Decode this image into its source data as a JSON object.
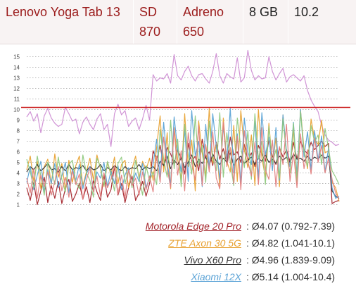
{
  "spec_row": [
    "Lenovo Yoga Tab 13",
    "SD 870",
    "Adreno 650",
    "8 GB",
    "10.2"
  ],
  "chart_data": {
    "type": "line",
    "title": "",
    "xlabel": "",
    "ylabel": "",
    "ylim": [
      0.5,
      15.7
    ],
    "yticks": [
      1,
      2,
      3,
      4,
      5,
      6,
      7,
      8,
      9,
      10,
      11,
      12,
      13,
      14,
      15
    ],
    "grid": "dotted-horizontal",
    "reference_line": {
      "y": 10.2,
      "color": "#cc2222"
    },
    "series": [
      {
        "name": "Lenovo Yoga Tab 13",
        "color": "#cf8fd4",
        "values": [
          9.3,
          9.8,
          8.9,
          9.6,
          7.8,
          9.4,
          10.1,
          9.2,
          8.7,
          8.4,
          8.6,
          10.2,
          9.6,
          8.9,
          9.1,
          7.7,
          8.8,
          9.3,
          8.6,
          8.1,
          9.1,
          9.6,
          8.1,
          8.6,
          6.5,
          9.6,
          10.5,
          9.5,
          9.9,
          8.4,
          8.9,
          9.2,
          8.1,
          9.1,
          10.4,
          9.0,
          13.3,
          12.7,
          13.0,
          12.9,
          13.4,
          12.5,
          15.2,
          13.2,
          12.8,
          13.6,
          14.1,
          13.2,
          12.7,
          13.3,
          13.4,
          12.9,
          12.5,
          13.6,
          15.3,
          13.2,
          12.5,
          13.4,
          13.1,
          12.9,
          14.9,
          12.6,
          13.0,
          15.6,
          13.7,
          12.8,
          13.2,
          12.9,
          13.0,
          15.0,
          13.6,
          12.8,
          13.4,
          13.9,
          12.6,
          13.1,
          13.3,
          13.0,
          12.7,
          13.2,
          11.8,
          10.9,
          10.3,
          9.8,
          8.5,
          7.6,
          7.1,
          6.9,
          6.6,
          6.7
        ]
      },
      {
        "name": "Motorola Edge 20 Pro",
        "color": "#a3232a",
        "values": [
          2.6,
          1.4,
          3.1,
          1.0,
          2.3,
          3.6,
          1.2,
          2.8,
          1.6,
          3.2,
          1.1,
          2.5,
          3.4,
          1.3,
          2.0,
          3.0,
          1.5,
          2.7,
          1.2,
          3.3,
          2.2,
          1.4,
          3.8,
          1.7,
          2.4,
          4.6,
          1.9,
          3.0,
          1.2,
          2.6,
          3.7,
          1.4,
          2.1,
          3.2,
          1.8,
          3.0,
          6.1,
          5.2,
          6.6,
          4.6,
          6.4,
          5.8,
          4.9,
          6.2,
          5.4,
          3.9,
          6.8,
          5.1,
          5.6,
          4.2,
          7.2,
          5.5,
          6.0,
          4.7,
          6.9,
          5.3,
          6.3,
          4.9,
          7.4,
          5.7,
          6.0,
          5.0,
          6.7,
          5.2,
          5.9,
          4.6,
          6.6,
          5.8,
          5.1,
          7.1,
          5.6,
          4.8,
          6.4,
          5.5,
          6.2,
          5.1,
          6.9,
          5.3,
          7.0,
          6.2,
          5.8,
          6.9,
          6.2,
          6.6,
          7.0,
          6.5,
          6.8,
          1.1,
          1.3,
          1.4
        ]
      },
      {
        "name": "ZTE Axon 30 5G",
        "color": "#e8a233",
        "values": [
          4.3,
          5.6,
          3.2,
          5.1,
          2.5,
          4.6,
          5.3,
          2.9,
          5.8,
          3.6,
          4.9,
          2.4,
          5.2,
          3.1,
          4.7,
          5.6,
          2.8,
          4.1,
          5.4,
          3.3,
          5.7,
          4.4,
          2.7,
          5.0,
          3.8,
          5.5,
          3.0,
          4.8,
          5.2,
          2.6,
          4.4,
          5.6,
          3.5,
          5.1,
          4.3,
          5.4,
          3.3,
          6.4,
          9.4,
          4.1,
          7.8,
          2.5,
          8.3,
          5.3,
          3.4,
          9.6,
          4.6,
          7.1,
          2.3,
          8.9,
          5.9,
          3.7,
          10.1,
          4.9,
          6.8,
          2.6,
          9.2,
          5.1,
          4.1,
          8.5,
          3.2,
          9.9,
          6.2,
          4.5,
          7.6,
          2.8,
          10.0,
          5.4,
          3.6,
          8.7,
          4.8,
          7.3,
          2.7,
          9.5,
          5.6,
          4.0,
          8.2,
          3.0,
          10.0,
          6.3,
          4.4,
          9.1,
          7.2,
          6.7,
          9.0,
          5.9,
          6.1,
          3.1,
          2.6,
          1.3
        ]
      },
      {
        "name": "Vivo X60 Pro",
        "color": "#333333",
        "values": [
          4.1,
          4.6,
          4.3,
          4.8,
          4.2,
          4.5,
          4.9,
          4.3,
          4.4,
          4.1,
          4.6,
          4.2,
          4.8,
          4.3,
          4.5,
          4.4,
          4.7,
          4.2,
          4.6,
          4.3,
          4.4,
          4.8,
          4.2,
          4.5,
          4.3,
          4.7,
          4.4,
          4.2,
          4.6,
          4.3,
          4.5,
          4.4,
          4.8,
          4.3,
          4.6,
          4.4,
          4.6,
          4.2,
          5.1,
          4.7,
          5.6,
          4.4,
          5.2,
          4.8,
          5.4,
          4.5,
          5.0,
          5.7,
          4.6,
          5.3,
          4.9,
          5.5,
          4.7,
          5.8,
          5.1,
          4.8,
          5.4,
          5.0,
          5.9,
          4.7,
          5.3,
          5.6,
          4.9,
          5.2,
          5.5,
          4.8,
          5.4,
          5.1,
          5.7,
          5.0,
          5.3,
          4.9,
          5.6,
          5.2,
          5.5,
          5.0,
          5.8,
          5.3,
          5.4,
          5.1,
          5.6,
          5.2,
          5.5,
          5.3,
          5.7,
          5.4,
          5.6,
          2.3,
          1.8,
          1.6
        ]
      },
      {
        "name": "Xiaomi 12X",
        "color": "#5ba3d6",
        "values": [
          3.1,
          4.6,
          2.4,
          3.8,
          5.1,
          2.2,
          4.3,
          3.0,
          4.9,
          2.6,
          3.7,
          5.0,
          2.1,
          4.4,
          3.3,
          4.8,
          2.5,
          3.9,
          4.6,
          2.3,
          4.1,
          3.5,
          5.0,
          2.7,
          4.2,
          3.0,
          4.7,
          2.4,
          3.8,
          4.5,
          2.8,
          4.0,
          3.2,
          4.9,
          2.6,
          3.6,
          4.8,
          7.2,
          3.6,
          8.8,
          5.0,
          2.9,
          9.3,
          6.2,
          4.1,
          8.1,
          3.2,
          9.9,
          5.6,
          7.0,
          2.7,
          8.6,
          4.4,
          9.6,
          6.5,
          3.4,
          8.4,
          5.2,
          10.1,
          4.0,
          7.7,
          3.0,
          9.2,
          6.0,
          4.8,
          8.9,
          3.5,
          9.7,
          5.7,
          7.4,
          4.2,
          8.3,
          3.3,
          9.5,
          6.1,
          4.6,
          8.8,
          3.8,
          10.0,
          5.5,
          7.9,
          4.3,
          8.0,
          5.2,
          7.5,
          4.1,
          6.4,
          2.6,
          1.6,
          1.8
        ]
      },
      {
        "name": "",
        "color": "#8fc97e",
        "values": [
          5.3,
          4.1,
          2.6,
          5.6,
          3.7,
          1.9,
          5.0,
          4.4,
          2.9,
          5.5,
          3.4,
          2.2,
          4.8,
          5.2,
          3.1,
          2.5,
          5.7,
          4.0,
          3.3,
          1.7,
          5.4,
          4.6,
          2.8,
          5.1,
          3.9,
          2.3,
          4.9,
          5.5,
          3.0,
          4.3,
          2.6,
          5.2,
          3.6,
          1.9,
          4.7,
          3.2,
          4.1,
          2.9,
          8.1,
          5.3,
          3.6,
          9.0,
          4.4,
          7.2,
          2.7,
          8.6,
          5.8,
          3.9,
          9.4,
          4.7,
          6.6,
          3.1,
          8.9,
          5.5,
          4.2,
          9.7,
          3.6,
          7.8,
          5.0,
          2.8,
          9.2,
          6.4,
          4.5,
          8.0,
          3.4,
          9.6,
          5.3,
          7.0,
          2.9,
          8.4,
          4.9,
          6.2,
          3.5,
          9.1,
          5.7,
          4.0,
          8.7,
          3.2,
          9.8,
          6.0,
          4.6,
          8.5,
          6.9,
          7.6,
          4.8,
          8.2,
          6.3,
          4.2,
          3.6,
          2.9
        ]
      },
      {
        "name": "",
        "color": "#e2807f",
        "values": [
          3.5,
          2.1,
          4.4,
          1.6,
          3.8,
          2.7,
          4.1,
          1.9,
          3.2,
          4.6,
          2.3,
          3.6,
          1.7,
          4.2,
          2.9,
          3.9,
          1.5,
          3.3,
          4.5,
          2.2,
          3.7,
          1.8,
          4.0,
          2.6,
          3.4,
          4.7,
          2.0,
          3.8,
          1.6,
          4.3,
          2.8,
          3.5,
          1.9,
          4.1,
          2.4,
          3.7,
          2.2,
          5.6,
          3.1,
          7.4,
          4.5,
          2.6,
          8.2,
          3.8,
          6.1,
          2.3,
          7.8,
          4.9,
          3.3,
          8.5,
          2.8,
          6.7,
          4.1,
          7.9,
          3.5,
          2.5,
          8.8,
          4.6,
          6.4,
          3.0,
          7.5,
          2.4,
          8.0,
          5.1,
          3.7,
          6.9,
          2.9,
          8.3,
          4.3,
          3.4,
          7.1,
          2.7,
          6.5,
          4.8,
          8.6,
          3.2,
          5.9,
          2.6,
          7.7,
          4.4,
          6.2,
          3.9,
          7.3,
          5.0,
          6.6,
          4.0,
          5.4,
          3.4,
          2.1,
          1.5
        ]
      }
    ]
  },
  "legend": [
    {
      "name": "Motorola Edge 20 Pro",
      "stat": ": Ø4.07 (0.792-7.39)",
      "color": "#a3232a"
    },
    {
      "name": "ZTE Axon 30 5G",
      "stat": ": Ø4.82 (1.041-10.1)",
      "color": "#e8a233"
    },
    {
      "name": "Vivo X60 Pro",
      "stat": ": Ø4.96 (1.839-9.09)",
      "color": "#333333"
    },
    {
      "name": "Xiaomi 12X",
      "stat": ": Ø5.14 (1.004-10.4)",
      "color": "#5ba3d6"
    }
  ]
}
